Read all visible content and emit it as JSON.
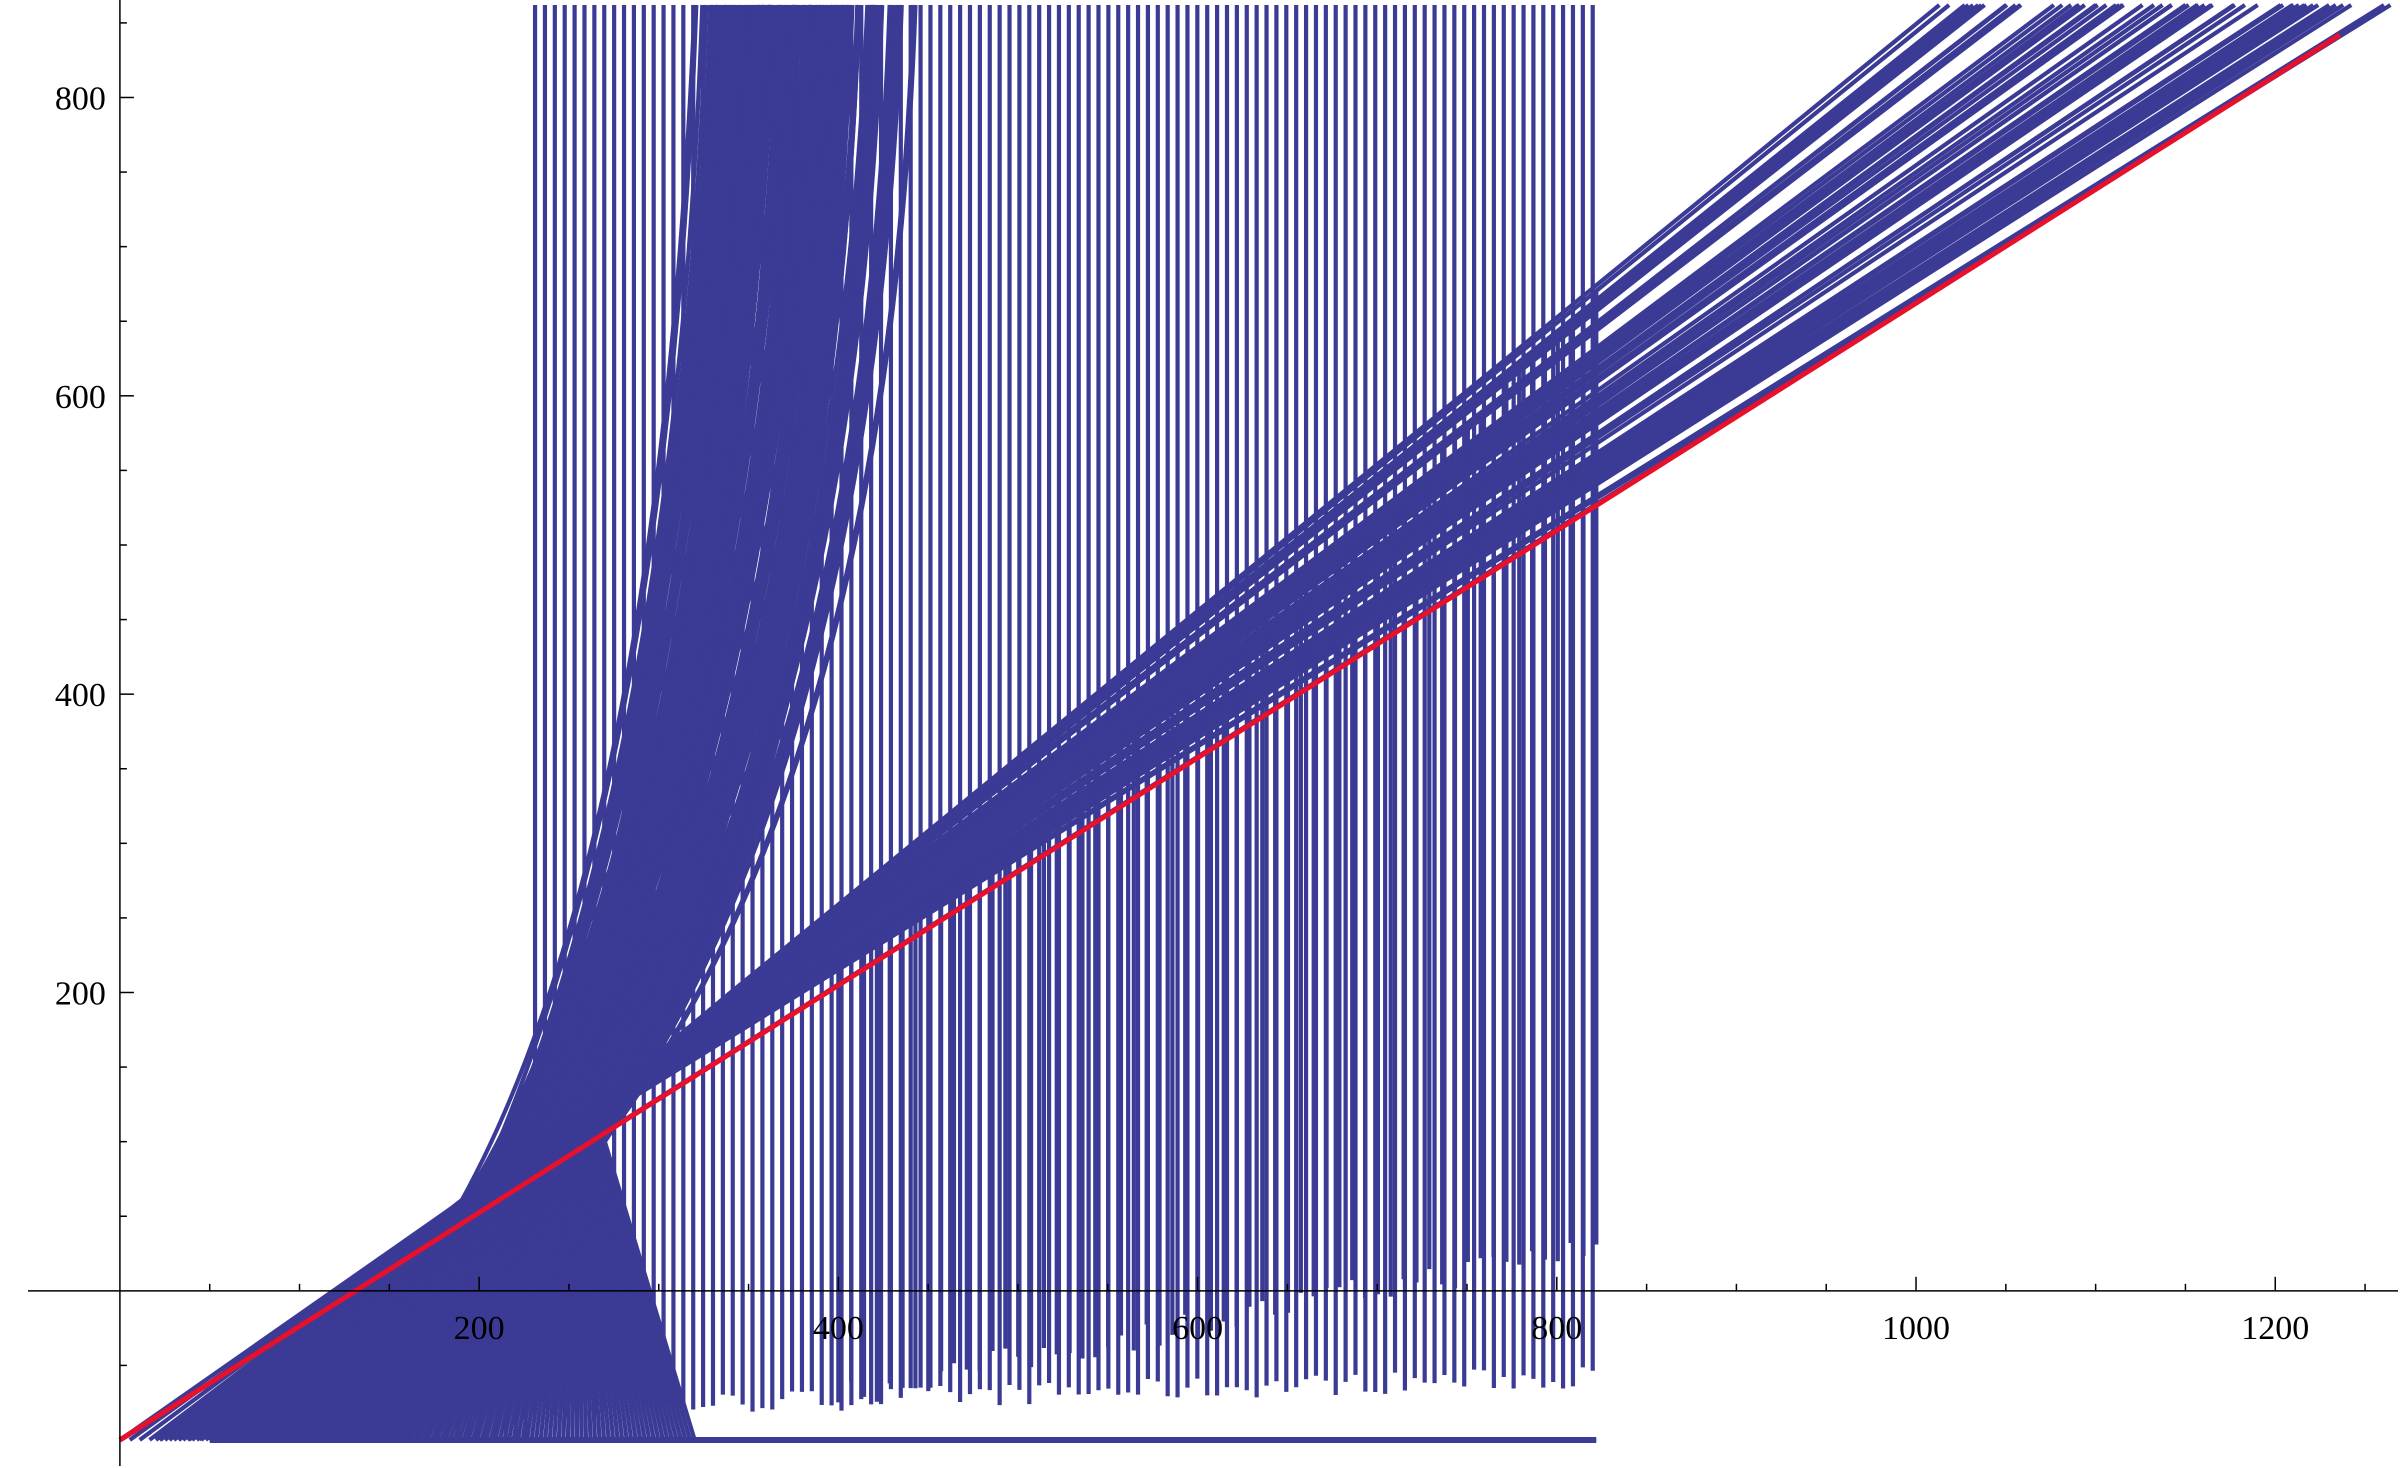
{
  "chart_data": {
    "type": "line",
    "title": "",
    "xlabel": "",
    "ylabel": "",
    "xlim": [
      -25,
      1265
    ],
    "ylim": [
      -100,
      862
    ],
    "axis_origin": [
      0,
      0
    ],
    "x_ticks": [
      {
        "value": 200,
        "label": "200"
      },
      {
        "value": 400,
        "label": "400"
      },
      {
        "value": 600,
        "label": "600"
      },
      {
        "value": 800,
        "label": "800"
      },
      {
        "value": 1000,
        "label": "1000"
      },
      {
        "value": 1200,
        "label": "1200"
      }
    ],
    "y_ticks": [
      {
        "value": 200,
        "label": "200"
      },
      {
        "value": 400,
        "label": "400"
      },
      {
        "value": 600,
        "label": "600"
      },
      {
        "value": 800,
        "label": "800"
      }
    ],
    "grid": false,
    "legend": "none",
    "colors": {
      "family": "#3b3b96",
      "reference": "#e8102a",
      "axis": "#000000"
    },
    "reference_series": {
      "points": [
        [
          0,
          -100
        ],
        [
          1236,
          842
        ]
      ]
    },
    "family_series": {
      "description_note": "",
      "baseline": {
        "points": [
          [
            50,
            -100
          ],
          [
            822,
            -100
          ]
        ]
      },
      "steep_curves": {
        "start_x": [
          0,
          820
        ],
        "start_y": [
          -100,
          -98
        ],
        "count": 80
      },
      "diagonal_lines": {
        "count": 30,
        "x_start": 20,
        "x_end_range": [
          1020,
          1240
        ],
        "y_top": 862,
        "drop_x_range": [
          400,
          822
        ],
        "drop_bottom_range": [
          -80,
          20
        ]
      }
    }
  }
}
